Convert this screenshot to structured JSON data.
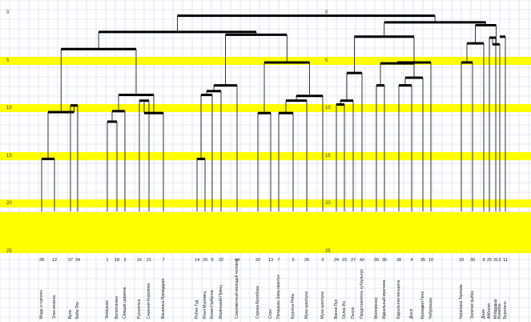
{
  "chart_data": {
    "type": "dendrogram",
    "y_axis": {
      "ticks": [
        "0",
        "5",
        "10",
        "15",
        "20",
        "25"
      ],
      "highlighted_levels": [
        5,
        10,
        15,
        20,
        25
      ],
      "highlight_color": "#ffff00"
    },
    "leaves": [
      {
        "num": "28",
        "name": "Мода и горчичн"
      },
      {
        "num": "12",
        "name": "Злак мнижка"
      },
      {
        "num": "37",
        "name": "Вуле"
      },
      {
        "num": "34",
        "name": "Баба Яга"
      },
      {
        "num": "1",
        "name": "Зелиушка"
      },
      {
        "num": "18",
        "name": "Белоснежка"
      },
      {
        "num": "2",
        "name": "Спящая царевна"
      },
      {
        "num": "16",
        "name": "Русалочка"
      },
      {
        "num": "21",
        "name": "Снежная Королева"
      },
      {
        "num": "7",
        "name": "Василиса Премудрая"
      },
      {
        "num": "14",
        "name": "Робин Гуд"
      },
      {
        "num": "29",
        "name": "Илья Муромец"
      },
      {
        "num": "9",
        "name": "Конек-Горбунок"
      },
      {
        "num": "22",
        "name": "Маленький Принц"
      },
      {
        "num": "44",
        "name": "Современный молодой человек"
      },
      {
        "num": "32",
        "name": "Сорока-Белобока"
      },
      {
        "num": "13",
        "name": "Слон"
      },
      {
        "num": "7",
        "name": "Петрушка Заяц-хвастун"
      },
      {
        "num": "5",
        "name": "Курочка Ряба"
      },
      {
        "num": "26",
        "name": "Муха-цокотуха"
      },
      {
        "num": "6",
        "name": "Муха-цокотуха"
      },
      {
        "num": "24",
        "name": "Винни Пух"
      },
      {
        "num": "15",
        "name": "Ослик Иа"
      },
      {
        "num": "27",
        "name": "Пьеро"
      },
      {
        "num": "42",
        "name": "Представитель субкультур"
      },
      {
        "num": "39",
        "name": "Миллионер"
      },
      {
        "num": "36",
        "name": "Идеальный мужчина"
      },
      {
        "num": "38",
        "name": "Идеальная женщина"
      },
      {
        "num": "4",
        "name": "Дюся"
      },
      {
        "num": "35",
        "name": "Крокодил Гена"
      },
      {
        "num": "10",
        "name": "Чебурашка"
      },
      {
        "num": "19",
        "name": "Черепаха Тортила"
      },
      {
        "num": "30",
        "name": "Золотая рыбка"
      },
      {
        "num": "8",
        "name": "Джин"
      },
      {
        "num": "25",
        "name": "Айболит"
      },
      {
        "num": "31",
        "name": "Мойдодыр"
      },
      {
        "num": "3",
        "name": "Колобок"
      },
      {
        "num": "11",
        "name": "Буратино"
      }
    ]
  }
}
